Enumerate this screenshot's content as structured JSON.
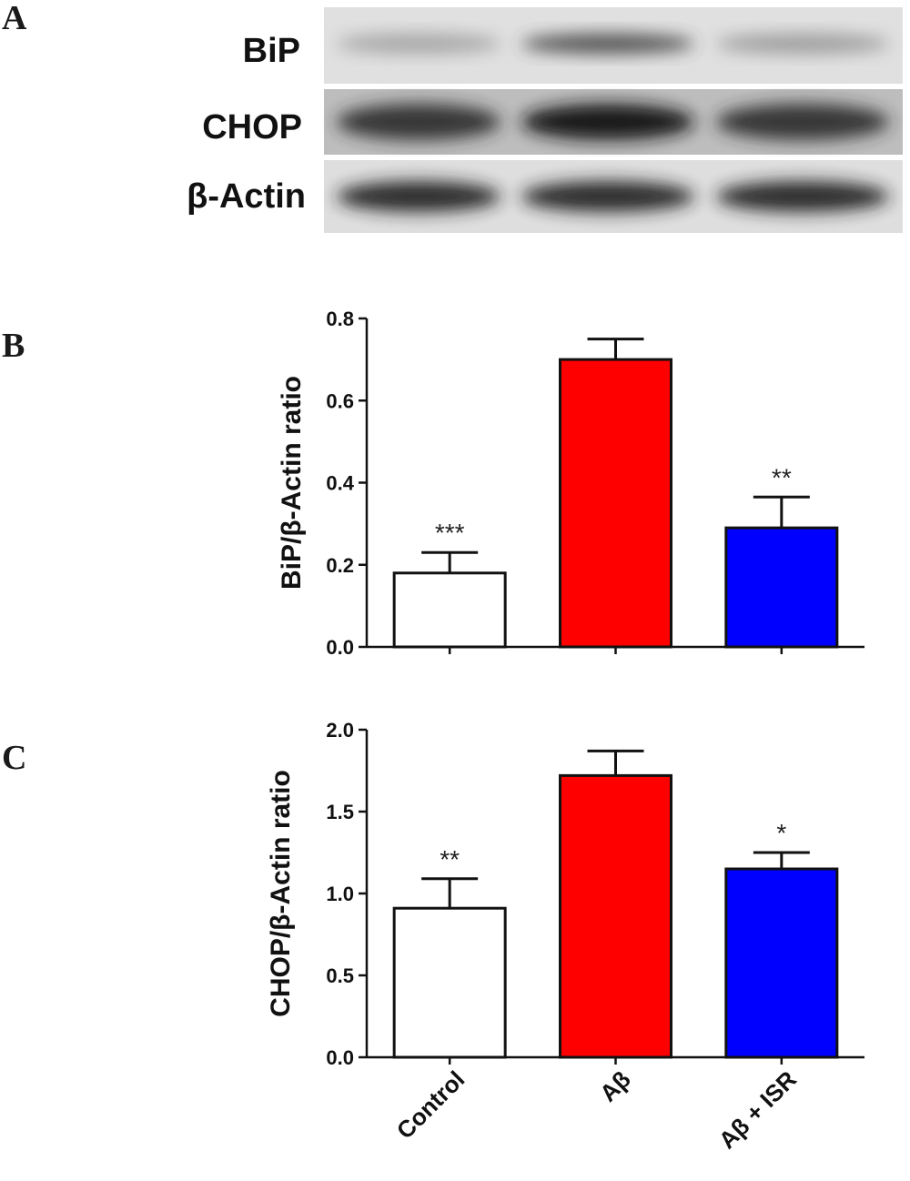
{
  "panels": {
    "a": "A",
    "b": "B",
    "c": "C"
  },
  "blot": {
    "rows": [
      {
        "label": "BiP",
        "bands": [
          0.35,
          0.75,
          0.4
        ]
      },
      {
        "label": "CHOP",
        "bands": [
          0.85,
          0.95,
          0.85
        ]
      },
      {
        "label": "β-Actin",
        "bands": [
          0.9,
          0.9,
          0.9
        ]
      }
    ]
  },
  "categories": [
    "Control",
    "Aβ",
    "Aβ + ISR"
  ],
  "colors": {
    "control": "#ffffff",
    "abeta": "#ff0000",
    "abeta_isr": "#0000ff"
  },
  "chart_data": [
    {
      "type": "bar",
      "title": "",
      "ylabel": "BiP/β-Actin ratio",
      "ylim": [
        0,
        0.8
      ],
      "yticks": [
        "0.0",
        "0.2",
        "0.4",
        "0.6",
        "0.8"
      ],
      "categories": [
        "Control",
        "Aβ",
        "Aβ + ISR"
      ],
      "values": [
        0.18,
        0.7,
        0.29
      ],
      "errors": [
        0.05,
        0.05,
        0.075
      ],
      "significance": [
        "***",
        "",
        "**"
      ]
    },
    {
      "type": "bar",
      "title": "",
      "ylabel": "CHOP/β-Actin ratio",
      "ylim": [
        0,
        2.0
      ],
      "yticks": [
        "0.0",
        "0.5",
        "1.0",
        "1.5",
        "2.0"
      ],
      "categories": [
        "Control",
        "Aβ",
        "Aβ + ISR"
      ],
      "values": [
        0.91,
        1.72,
        1.15
      ],
      "errors": [
        0.18,
        0.15,
        0.1
      ],
      "significance": [
        "**",
        "",
        "*"
      ]
    }
  ]
}
